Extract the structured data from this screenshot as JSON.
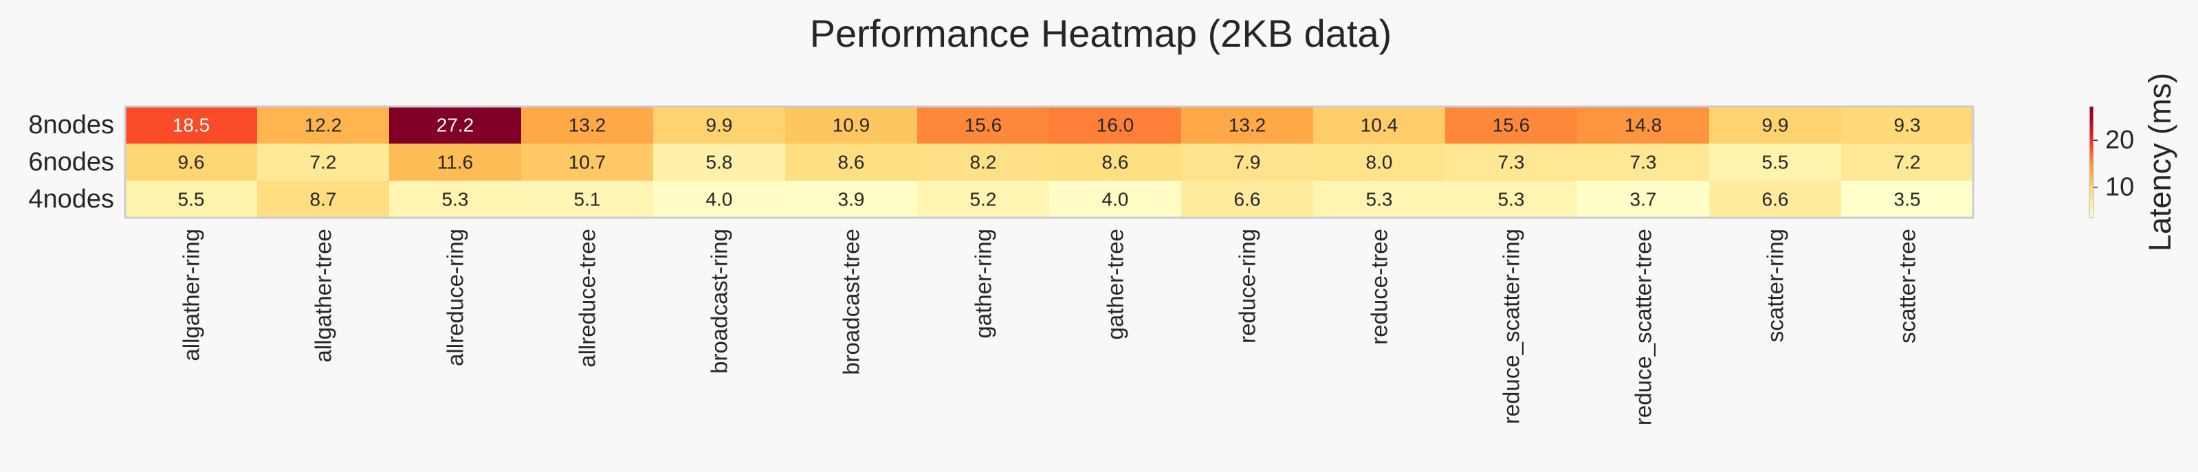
{
  "chart_data": {
    "type": "heatmap",
    "title": "Performance Heatmap (2KB data)",
    "rows": [
      "8nodes",
      "6nodes",
      "4nodes"
    ],
    "columns": [
      "allgather-ring",
      "allgather-tree",
      "allreduce-ring",
      "allreduce-tree",
      "broadcast-ring",
      "broadcast-tree",
      "gather-ring",
      "gather-tree",
      "reduce-ring",
      "reduce-tree",
      "reduce_scatter-ring",
      "reduce_scatter-tree",
      "scatter-ring",
      "scatter-tree"
    ],
    "values": [
      [
        18.5,
        12.2,
        27.2,
        13.2,
        9.9,
        10.9,
        15.6,
        16.0,
        13.2,
        10.4,
        15.6,
        14.8,
        9.9,
        9.3
      ],
      [
        9.6,
        7.2,
        11.6,
        10.7,
        5.8,
        8.6,
        8.2,
        8.6,
        7.9,
        8.0,
        7.3,
        7.3,
        5.5,
        7.2
      ],
      [
        5.5,
        8.7,
        5.3,
        5.1,
        4.0,
        3.9,
        5.2,
        4.0,
        6.6,
        5.3,
        5.3,
        3.7,
        6.6,
        3.5
      ]
    ],
    "value_format": "0.0",
    "colormap": "YlOrRd",
    "vmin": 3.5,
    "vmax": 27.2,
    "colorbar": {
      "label": "Latency (ms)",
      "ticks": [
        10,
        20
      ]
    }
  }
}
